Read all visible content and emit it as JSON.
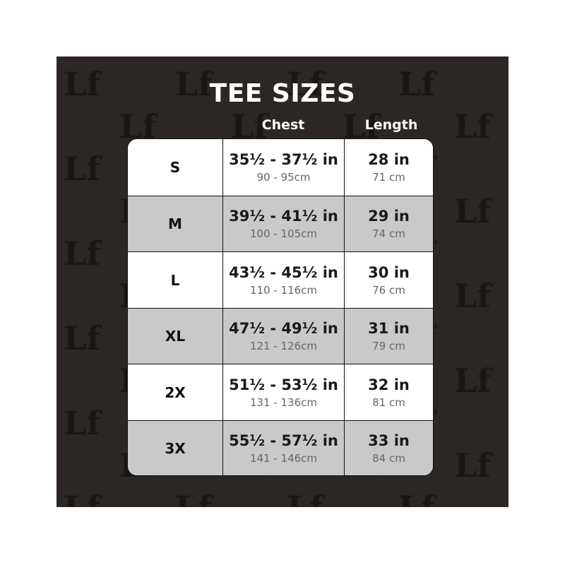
{
  "title": "TEE SIZES",
  "headers": {
    "chest": "Chest",
    "length": "Length"
  },
  "logo_text": "Lf",
  "colors": {
    "background": "#2c2724",
    "row_alt": "#c9c9c9",
    "row": "#ffffff"
  },
  "rows": [
    {
      "size": "S",
      "chest_in": "35½ - 37½ in",
      "chest_cm": "90 - 95cm",
      "length_in": "28 in",
      "length_cm": "71 cm"
    },
    {
      "size": "M",
      "chest_in": "39½ - 41½ in",
      "chest_cm": "100 - 105cm",
      "length_in": "29 in",
      "length_cm": "74 cm"
    },
    {
      "size": "L",
      "chest_in": "43½ - 45½  in",
      "chest_cm": "110 - 116cm",
      "length_in": "30 in",
      "length_cm": "76 cm"
    },
    {
      "size": "XL",
      "chest_in": "47½ - 49½ in",
      "chest_cm": "121 - 126cm",
      "length_in": "31 in",
      "length_cm": "79 cm"
    },
    {
      "size": "2X",
      "chest_in": "51½ - 53½ in",
      "chest_cm": "131 - 136cm",
      "length_in": "32 in",
      "length_cm": "81 cm"
    },
    {
      "size": "3X",
      "chest_in": "55½ - 57½ in",
      "chest_cm": "141 - 146cm",
      "length_in": "33 in",
      "length_cm": "84 cm"
    }
  ]
}
